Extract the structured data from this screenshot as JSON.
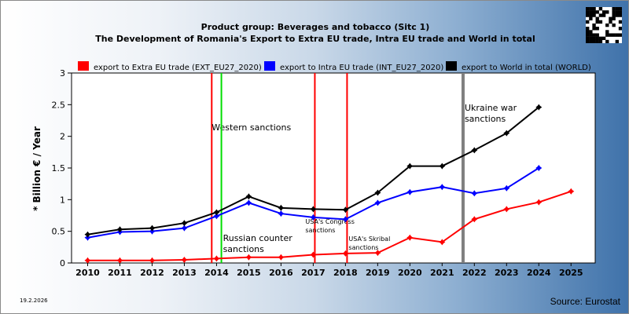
{
  "chart_data": {
    "type": "line",
    "title": "Product group: Beverages and tobacco (Sitc 1)",
    "subtitle": "The Development of Romania's Export to Extra EU trade, Intra EU trade and World in total",
    "ylabel": "* Billion € / Year",
    "xlabel": "",
    "categories": [
      2010,
      2011,
      2012,
      2013,
      2014,
      2015,
      2016,
      2017,
      2018,
      2019,
      2020,
      2021,
      2022,
      2023,
      2024,
      2025
    ],
    "y_ticks": [
      0,
      0.5,
      1,
      1.5,
      2,
      2.5,
      3
    ],
    "ylim": [
      0,
      3
    ],
    "grid": false,
    "legend_position": "top",
    "series": [
      {
        "name": "export to Extra EU trade (EXT_EU27_2020)",
        "color": "#ff0000",
        "x": [
          2010,
          2011,
          2012,
          2013,
          2014,
          2015,
          2016,
          2017,
          2018,
          2019,
          2020,
          2021,
          2022,
          2023,
          2024,
          2025
        ],
        "values": [
          0.04,
          0.04,
          0.04,
          0.05,
          0.07,
          0.09,
          0.09,
          0.13,
          0.15,
          0.16,
          0.4,
          0.33,
          0.69,
          0.85,
          0.96,
          1.13
        ]
      },
      {
        "name": "export to Intra EU trade (INT_EU27_2020)",
        "color": "#0000ff",
        "x": [
          2010,
          2011,
          2012,
          2013,
          2014,
          2015,
          2016,
          2017,
          2018,
          2019,
          2020,
          2021,
          2022,
          2023,
          2024
        ],
        "values": [
          0.4,
          0.49,
          0.5,
          0.55,
          0.74,
          0.95,
          0.78,
          0.72,
          0.69,
          0.95,
          1.12,
          1.2,
          1.1,
          1.18,
          1.5
        ]
      },
      {
        "name": "export to World in total (WORLD)",
        "color": "#000000",
        "x": [
          2010,
          2011,
          2012,
          2013,
          2014,
          2015,
          2016,
          2017,
          2018,
          2019,
          2020,
          2021,
          2022,
          2023,
          2024
        ],
        "values": [
          0.45,
          0.53,
          0.55,
          0.63,
          0.8,
          1.05,
          0.87,
          0.85,
          0.84,
          1.11,
          1.53,
          1.53,
          1.78,
          2.05,
          2.46
        ]
      }
    ],
    "events": [
      {
        "x": 2013.85,
        "color": "#ff0000",
        "label": "Western sanctions"
      },
      {
        "x": 2014.15,
        "color": "#00dd00",
        "label": "Russian counter sanctions"
      },
      {
        "x": 2017.05,
        "color": "#ff0000",
        "label": "USA's Congress sanctions"
      },
      {
        "x": 2018.05,
        "color": "#ff0000",
        "label": "USA's Skribal sanctions"
      },
      {
        "x": 2021.65,
        "color": "#808080",
        "label": "Ukraine war sanctions"
      }
    ]
  },
  "footer": {
    "source": "Source: Eurostat",
    "date": "19.2.2026"
  }
}
